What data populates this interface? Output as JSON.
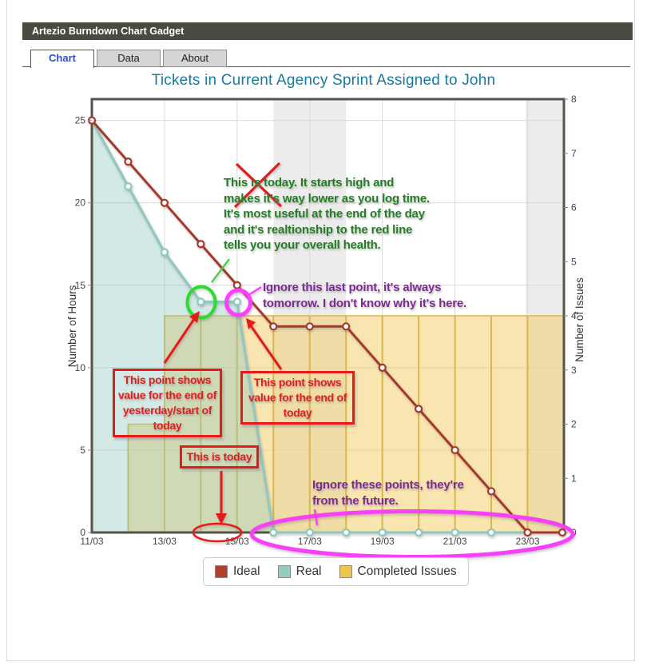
{
  "gadget": {
    "header_title": "Artezio Burndown Chart Gadget"
  },
  "tabs": [
    {
      "label": "Chart",
      "active": true
    },
    {
      "label": "Data",
      "active": false
    },
    {
      "label": "About",
      "active": false
    }
  ],
  "chart_data": {
    "type": "line",
    "title": "Tickets in Current Agency Sprint Assigned to John",
    "xlabel": "",
    "ylabel_left": "Number of Hours",
    "ylabel_right": "Number of Issues",
    "ylim_left": [
      0,
      25
    ],
    "ylim_right": [
      0,
      8
    ],
    "x_tick_labels": [
      "11/03",
      "13/03",
      "15/03",
      "17/03",
      "19/03",
      "21/03",
      "23/03"
    ],
    "x_tick_days": [
      0,
      2,
      4,
      6,
      8,
      10,
      12
    ],
    "days_total": 13,
    "left_ticks": [
      0,
      5,
      10,
      15,
      20,
      25
    ],
    "right_ticks": [
      0,
      1,
      2,
      3,
      4,
      5,
      6,
      7,
      8
    ],
    "grid_h_hours": [
      5,
      10,
      15,
      20,
      25
    ],
    "grid_v_days": [
      2,
      4,
      6,
      8,
      10,
      12
    ],
    "weekend_bands_days": [
      [
        5,
        7
      ],
      [
        11.95,
        13
      ]
    ],
    "grid_color": "#d9d9d9",
    "band_color": "#ececec",
    "border_color": "#55544a",
    "series": [
      {
        "name": "Ideal",
        "axis": "hours",
        "color": "#a5392c",
        "values": [
          25,
          22.5,
          20,
          17.5,
          15,
          12.5,
          12.5,
          12.5,
          10,
          7.5,
          5,
          2.5,
          0,
          0
        ]
      },
      {
        "name": "Real",
        "axis": "hours",
        "color": "#90c8c0",
        "fill": "rgba(144,200,192,0.40)",
        "values": [
          25,
          21,
          17,
          14,
          14,
          0,
          0,
          0,
          0,
          0,
          0,
          0,
          0,
          0
        ]
      },
      {
        "name": "Completed Issues",
        "axis": "issues",
        "step_area": true,
        "color": "#d9b74e",
        "fill": "rgba(242,208,110,0.55)",
        "values": [
          0,
          2,
          4,
          4,
          4,
          4,
          4,
          4,
          4,
          4,
          4,
          4,
          4
        ]
      }
    ]
  },
  "legend": [
    {
      "label": "Ideal",
      "color": "#b2402e"
    },
    {
      "label": "Real",
      "color": "#94cbc1"
    },
    {
      "label": "Completed Issues",
      "color": "#ecc84e"
    }
  ],
  "annotations": {
    "green_note": {
      "lines": [
        "This is today. It starts high and",
        "makes it's way lower as you log time.",
        "It's most useful at the end of the day",
        "and it's realtionship to the red line",
        "tells you your overall health."
      ]
    },
    "purple_note_tomorrow": {
      "lines": [
        "Ignore this last point, it's always",
        "tomorrow. I don't know why it's here."
      ]
    },
    "purple_note_future": {
      "lines": [
        "Ignore these points, they're",
        "from the future."
      ]
    },
    "red_box_yesterday": {
      "lines": [
        "This point shows",
        "value for the end of",
        "yesterday/start of",
        "today"
      ]
    },
    "red_box_today_value": {
      "lines": [
        "This point shows",
        "value for the end of",
        "today"
      ]
    },
    "red_box_today": {
      "label": "This is today"
    }
  },
  "colors": {
    "header_bg": "#4b4a40",
    "active_tab_text": "#2b50c8",
    "title_text": "#177b9e",
    "annotation_red": "#e81919",
    "annotation_green": "#277d27",
    "annotation_purple": "#7d2c8f",
    "annotation_magenta": "#ff3dff"
  }
}
